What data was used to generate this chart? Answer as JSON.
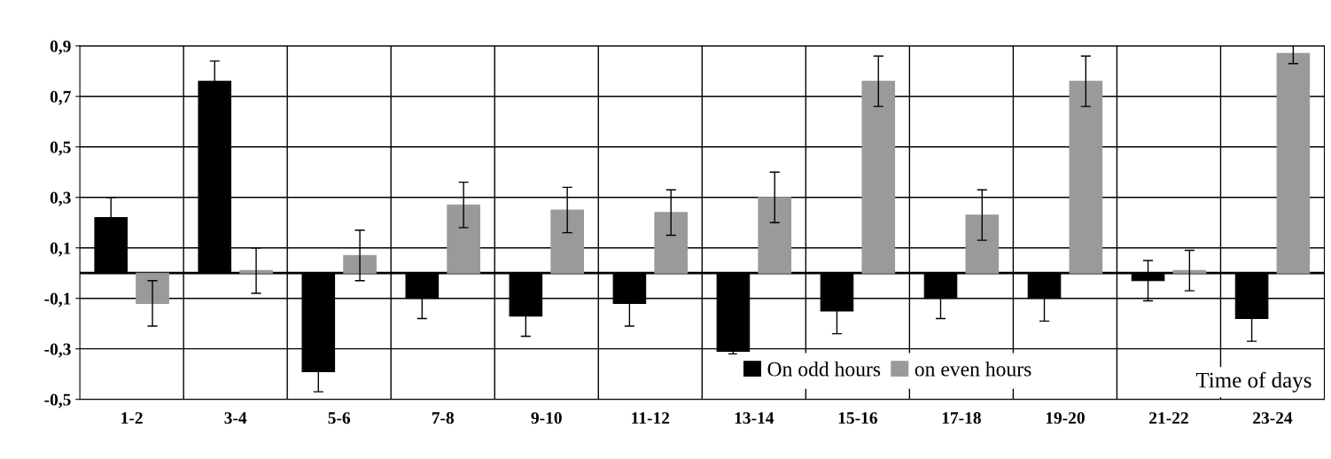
{
  "chart_data": {
    "type": "bar",
    "xlabel": "Time of days",
    "categories": [
      "1-2",
      "3-4",
      "5-6",
      "7-8",
      "9-10",
      "11-12",
      "13-14",
      "15-16",
      "17-18",
      "19-20",
      "21-22",
      "23-24"
    ],
    "series": [
      {
        "name": "On odd hours",
        "color": "#000000",
        "values": [
          0.22,
          0.76,
          -0.39,
          -0.1,
          -0.17,
          -0.12,
          -0.31,
          -0.15,
          -0.1,
          -0.1,
          -0.03,
          -0.18
        ],
        "errors": [
          0.08,
          0.08,
          0.08,
          0.08,
          0.08,
          0.09,
          0.01,
          0.09,
          0.08,
          0.09,
          0.08,
          0.09
        ]
      },
      {
        "name": "on even hours",
        "color": "#9a9a9a",
        "values": [
          -0.12,
          0.01,
          0.07,
          0.27,
          0.25,
          0.24,
          0.3,
          0.76,
          0.23,
          0.76,
          0.01,
          0.87
        ],
        "errors": [
          0.09,
          0.09,
          0.1,
          0.09,
          0.09,
          0.09,
          0.1,
          0.1,
          0.1,
          0.1,
          0.08,
          0.04
        ]
      }
    ],
    "ylim": [
      -0.5,
      0.9
    ],
    "yticks": [
      {
        "value": -0.5,
        "label": "-0,5"
      },
      {
        "value": -0.3,
        "label": "-0,3"
      },
      {
        "value": -0.1,
        "label": "-0,1"
      },
      {
        "value": 0.1,
        "label": "0,1"
      },
      {
        "value": 0.3,
        "label": "0,3"
      },
      {
        "value": 0.5,
        "label": "0,5"
      },
      {
        "value": 0.7,
        "label": "0,7"
      },
      {
        "value": 0.9,
        "label": "0,9"
      }
    ],
    "grid": true,
    "legend": "bottom right"
  }
}
